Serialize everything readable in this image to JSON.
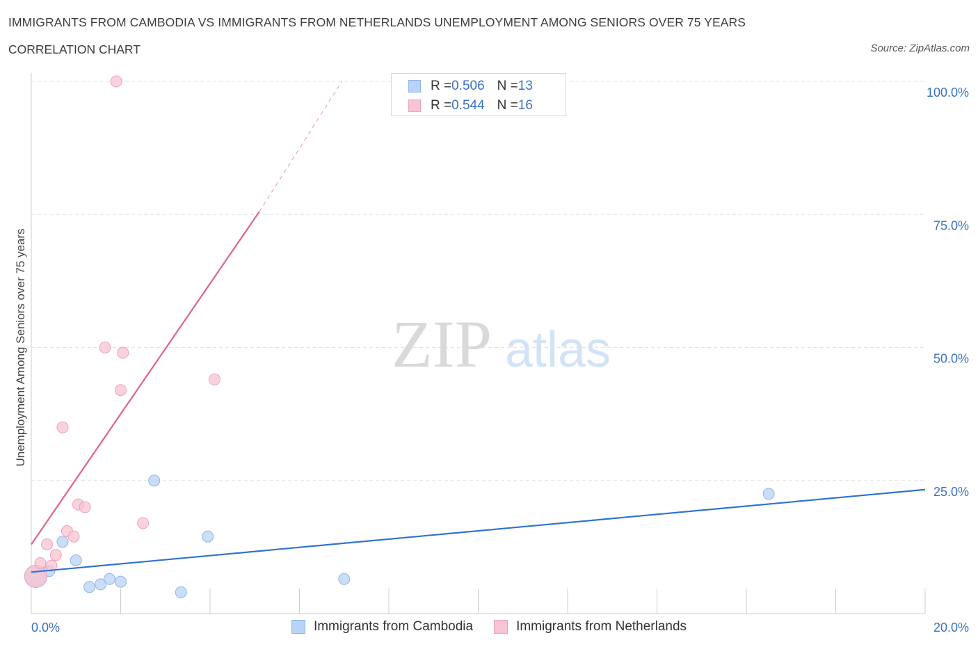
{
  "header": {
    "title": "IMMIGRANTS FROM CAMBODIA VS IMMIGRANTS FROM NETHERLANDS UNEMPLOYMENT AMONG SENIORS OVER 75 YEARS",
    "subtitle": "CORRELATION CHART",
    "source": "Source: ZipAtlas.com"
  },
  "watermark": {
    "zip": "ZIP",
    "atlas": "atlas"
  },
  "legend": {
    "rows": [
      {
        "r_label": "R = ",
        "r_value": "0.506",
        "n_label": "N = ",
        "n_value": "13"
      },
      {
        "r_label": "R = ",
        "r_value": "0.544",
        "n_label": "N = ",
        "n_value": "16"
      }
    ]
  },
  "colors": {
    "cambodia_fill": "#b8d3f5",
    "cambodia_stroke": "#8fb4e6",
    "cambodia_line": "#2f73d0",
    "netherlands_fill": "#f8c3d2",
    "netherlands_stroke": "#eea2b9",
    "netherlands_line": "#e0628d",
    "axis_text": "#3a72c4",
    "grid": "#e3e3e3"
  },
  "chart_data": {
    "type": "scatter",
    "title": "IMMIGRANTS FROM CAMBODIA VS IMMIGRANTS FROM NETHERLANDS UNEMPLOYMENT AMONG SENIORS OVER 75 YEARS",
    "subtitle": "CORRELATION CHART",
    "xlabel": "",
    "ylabel": "Unemployment Among Seniors over 75 years",
    "xlim": [
      0,
      20
    ],
    "ylim": [
      0,
      100
    ],
    "x_tick_labels": [
      "0.0%",
      "20.0%"
    ],
    "y_ticks": [
      25,
      50,
      75,
      100
    ],
    "y_tick_labels": [
      "25.0%",
      "50.0%",
      "75.0%",
      "100.0%"
    ],
    "grid": true,
    "series": [
      {
        "name": "Immigrants from Cambodia",
        "x": [
          0.1,
          0.4,
          0.7,
          1.0,
          1.3,
          1.55,
          1.75,
          2.0,
          2.75,
          3.35,
          3.95,
          7.0,
          16.5
        ],
        "y": [
          7,
          8,
          13.5,
          10,
          5,
          5.5,
          6.5,
          6,
          25,
          4,
          14.5,
          6.5,
          22.5
        ],
        "size": [
          16,
          8,
          8,
          8,
          8,
          8,
          8,
          8,
          8,
          8,
          8,
          8,
          8
        ],
        "trend": {
          "x": [
            0,
            20
          ],
          "y": [
            7.8,
            23.3
          ]
        }
      },
      {
        "name": "Immigrants from Netherlands",
        "x": [
          0.1,
          0.2,
          0.35,
          0.45,
          0.55,
          0.7,
          0.8,
          0.95,
          1.05,
          1.2,
          1.65,
          1.9,
          2.0,
          2.05,
          2.5,
          4.1
        ],
        "y": [
          7,
          9.5,
          13,
          9,
          11,
          35,
          15.5,
          14.5,
          20.5,
          20,
          50,
          100,
          42,
          49,
          17,
          44
        ],
        "size": [
          16,
          8,
          8,
          8,
          8,
          8,
          8,
          8,
          8,
          8,
          8,
          8,
          8,
          8,
          8,
          8
        ],
        "trend": {
          "x": [
            0,
            5.1
          ],
          "y": [
            13,
            75.5
          ],
          "dashed_x": [
            5.1,
            6.95
          ],
          "dashed_y": [
            75.5,
            100
          ]
        }
      }
    ]
  }
}
